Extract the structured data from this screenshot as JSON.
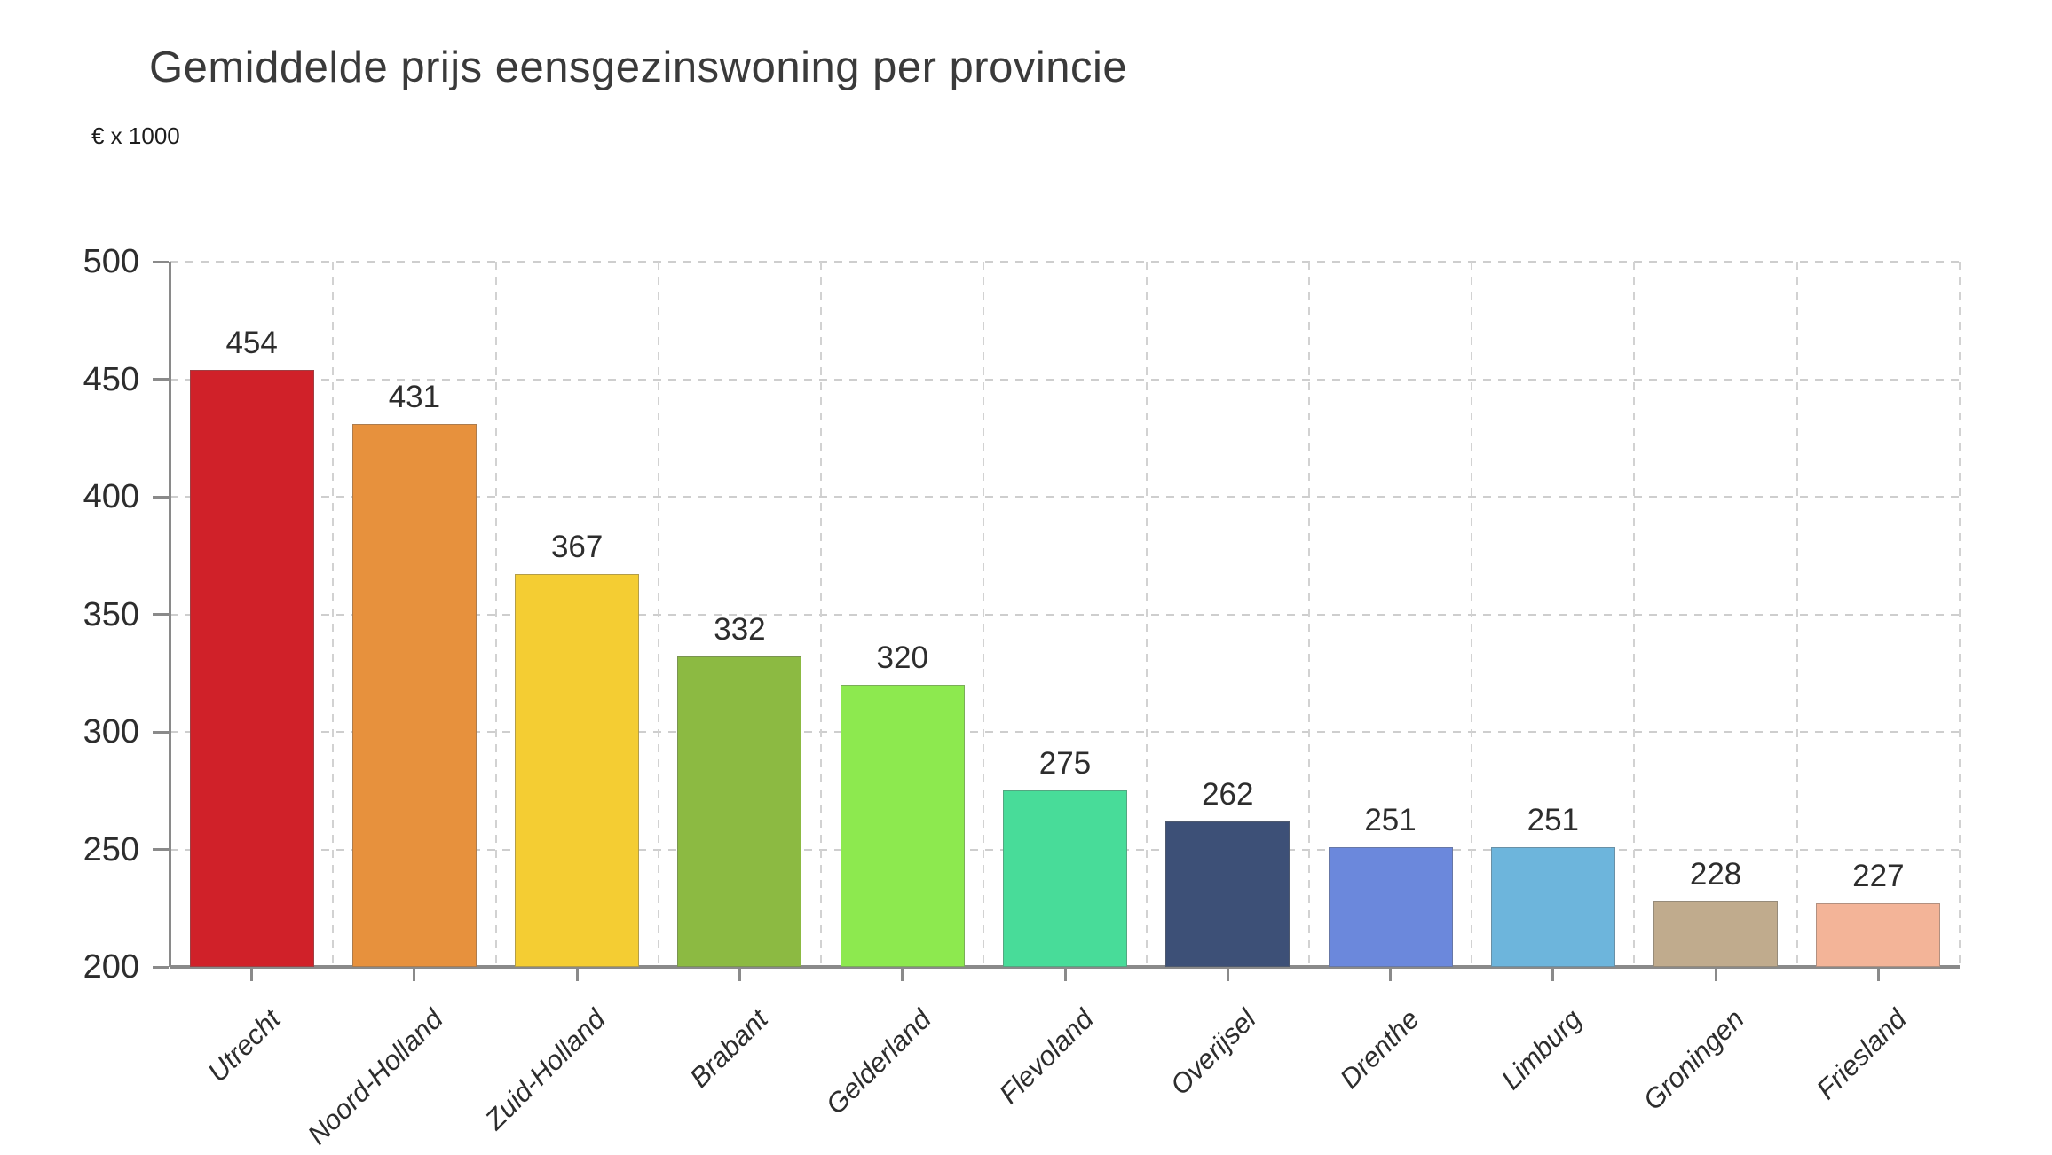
{
  "title": "Gemiddelde prijs eensgezinswoning per provincie",
  "chart_data": {
    "type": "bar",
    "title": "Gemiddelde prijs eensgezinswoning per provincie",
    "unit_label": "€ x 1000",
    "xlabel": "",
    "ylabel": "€ x 1000",
    "categories": [
      "Utrecht",
      "Noord-Holland",
      "Zuid-Holland",
      "Brabant",
      "Gelderland",
      "Flevoland",
      "Overijsel",
      "Drenthe",
      "Limburg",
      "Groningen",
      "Friesland"
    ],
    "values": [
      454,
      431,
      367,
      332,
      320,
      275,
      262,
      251,
      251,
      228,
      227
    ],
    "bar_colors": [
      "#d02129",
      "#e7913d",
      "#f4cd33",
      "#8cba42",
      "#8de94f",
      "#48dc99",
      "#3d5077",
      "#6b88dc",
      "#6db5dc",
      "#c0ab8d",
      "#f3b498"
    ],
    "value_labels": [
      454,
      431,
      367,
      332,
      320,
      275,
      262,
      251,
      251,
      228,
      227
    ],
    "y_ticks": [
      500,
      450,
      400,
      350,
      300,
      250,
      200
    ],
    "ylim": [
      200,
      500
    ],
    "grid": "dashed horizontal and vertical",
    "legend_position": "none"
  }
}
